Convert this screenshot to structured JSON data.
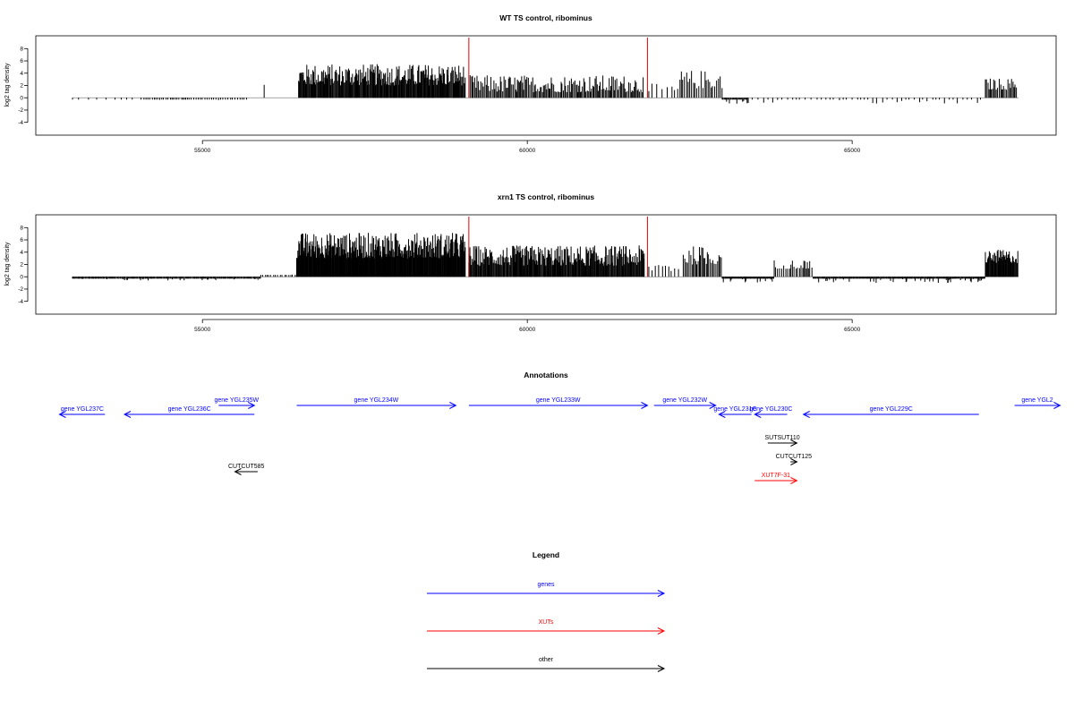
{
  "chart_data": [
    {
      "type": "bar",
      "title": "WT TS control, ribominus",
      "ylabel": "log2 tag density",
      "xlabel": "",
      "xlim": [
        52960,
        67600
      ],
      "ylim": [
        -5.5,
        9.5
      ],
      "x_ticks": [
        55000,
        60000,
        65000
      ],
      "x_tick_labels": [
        "55000",
        "60000",
        "65000"
      ],
      "y_ticks": [
        -4,
        -2,
        0,
        2,
        4,
        6,
        8
      ],
      "y_tick_labels": [
        "-4",
        "-2",
        "0",
        "2",
        "4",
        "6",
        "8"
      ],
      "baseline_range": [
        53000,
        67560
      ],
      "markers": [
        59100,
        61850
      ],
      "marker_color": "#e31a1c",
      "segments": [
        {
          "x0": 53000,
          "x1": 54100,
          "step": 110,
          "base": -0.6,
          "amp": 0.8,
          "sign": -1
        },
        {
          "x0": 54100,
          "x1": 55700,
          "step": 32,
          "base": -1.2,
          "amp": 1.6,
          "sign": -1
        },
        {
          "x0": 55950,
          "x1": 56100,
          "step": 150,
          "base": 2.0,
          "amp": 0.2,
          "sign": 1
        },
        {
          "x0": 56480,
          "x1": 59050,
          "step": 11,
          "base": 2.0,
          "amp": 3.5,
          "sign": 1
        },
        {
          "x0": 59120,
          "x1": 61800,
          "step": 18,
          "base": 0.9,
          "amp": 2.8,
          "sign": 1
        },
        {
          "x0": 61870,
          "x1": 62350,
          "step": 60,
          "base": 0.5,
          "amp": 1.8,
          "sign": 1
        },
        {
          "x0": 62350,
          "x1": 63000,
          "step": 26,
          "base": 1.5,
          "amp": 3.0,
          "sign": 1
        },
        {
          "x0": 63000,
          "x1": 63400,
          "step": 14,
          "base": -1.3,
          "amp": 2.5,
          "sign": -1
        },
        {
          "x0": 63400,
          "x1": 67000,
          "step": 70,
          "base": -0.8,
          "amp": 1.8,
          "sign": -1
        },
        {
          "x0": 67050,
          "x1": 67550,
          "step": 20,
          "base": 1.3,
          "amp": 1.9,
          "sign": 1
        }
      ]
    },
    {
      "type": "bar",
      "title": "xrn1 TS control, ribominus",
      "ylabel": "log2 tag density",
      "xlabel": "",
      "xlim": [
        52960,
        67600
      ],
      "ylim": [
        -5.5,
        9.5
      ],
      "x_ticks": [
        55000,
        60000,
        65000
      ],
      "x_tick_labels": [
        "55000",
        "60000",
        "65000"
      ],
      "y_ticks": [
        -4,
        -2,
        0,
        2,
        4,
        6,
        8
      ],
      "y_tick_labels": [
        "-4",
        "-2",
        "0",
        "2",
        "4",
        "6",
        "8"
      ],
      "baseline_range": [
        53000,
        67560
      ],
      "markers": [
        59100,
        61850
      ],
      "marker_color": "#e31a1c",
      "segments": [
        {
          "x0": 53000,
          "x1": 55900,
          "step": 13,
          "base": -1.8,
          "amp": 2.4,
          "sign": -1
        },
        {
          "x0": 55900,
          "x1": 56450,
          "step": 35,
          "base": -0.8,
          "amp": 1.3,
          "sign": 1
        },
        {
          "x0": 56450,
          "x1": 59050,
          "step": 8,
          "base": 3.0,
          "amp": 4.2,
          "sign": 1
        },
        {
          "x0": 59100,
          "x1": 61800,
          "step": 11,
          "base": 1.8,
          "amp": 3.3,
          "sign": 1
        },
        {
          "x0": 61870,
          "x1": 62350,
          "step": 45,
          "base": 0.8,
          "amp": 1.8,
          "sign": 1
        },
        {
          "x0": 62400,
          "x1": 63000,
          "step": 22,
          "base": 2.0,
          "amp": 3.0,
          "sign": 1
        },
        {
          "x0": 63000,
          "x1": 63800,
          "step": 10,
          "base": -2.0,
          "amp": 3.0,
          "sign": -1
        },
        {
          "x0": 63800,
          "x1": 64400,
          "step": 25,
          "base": 1.3,
          "amp": 1.5,
          "sign": 1
        },
        {
          "x0": 64400,
          "x1": 67050,
          "step": 11,
          "base": -1.8,
          "amp": 2.8,
          "sign": -1
        },
        {
          "x0": 67050,
          "x1": 67550,
          "step": 10,
          "base": 2.2,
          "amp": 2.2,
          "sign": 1
        }
      ]
    },
    {
      "type": "diagram",
      "title": "Annotations",
      "features": [
        {
          "label": "gene YGL237C",
          "x0": 53500,
          "x1": 52800,
          "row": 1,
          "kind": "gene"
        },
        {
          "label": "gene YGL236C",
          "x0": 55800,
          "x1": 53800,
          "row": 1,
          "kind": "gene"
        },
        {
          "label": "gene YGL235W",
          "x0": 55250,
          "x1": 55800,
          "row": 0,
          "kind": "gene"
        },
        {
          "label": "gene YGL234W",
          "x0": 56450,
          "x1": 58900,
          "row": 0,
          "kind": "gene"
        },
        {
          "label": "gene YGL233W",
          "x0": 59100,
          "x1": 61850,
          "row": 0,
          "kind": "gene"
        },
        {
          "label": "gene YGL232W",
          "x0": 61950,
          "x1": 62900,
          "row": 0,
          "kind": "gene"
        },
        {
          "label": "gene YGL231C",
          "x0": 63450,
          "x1": 62950,
          "row": 1,
          "kind": "gene"
        },
        {
          "label": "gene YGL230C",
          "x0": 64000,
          "x1": 63500,
          "row": 1,
          "kind": "gene"
        },
        {
          "label": "gene YGL229C",
          "x0": 66950,
          "x1": 64250,
          "row": 1,
          "kind": "gene"
        },
        {
          "label": "gene YGL2",
          "x0": 67500,
          "x1": 68200,
          "row": 0,
          "kind": "gene"
        },
        {
          "label": "SUTSUT110",
          "x0": 63700,
          "x1": 64150,
          "row": 3,
          "kind": "other"
        },
        {
          "label": "CUTCUT125",
          "x0": 64050,
          "x1": 64150,
          "row": 4,
          "kind": "other"
        },
        {
          "label": "CUTCUT585",
          "x0": 55850,
          "x1": 55500,
          "row": 5,
          "kind": "other"
        },
        {
          "label": "XUT7F-31",
          "x0": 63500,
          "x1": 64150,
          "row": 6,
          "kind": "xut"
        }
      ],
      "colors": {
        "gene": "#0000ff",
        "xut": "#ff0000",
        "other": "#000000"
      }
    },
    {
      "type": "legend",
      "title": "Legend",
      "entries": [
        {
          "label": "genes",
          "color": "#0000ff"
        },
        {
          "label": "XUTs",
          "color": "#ff0000"
        },
        {
          "label": "other",
          "color": "#000000"
        }
      ]
    }
  ]
}
